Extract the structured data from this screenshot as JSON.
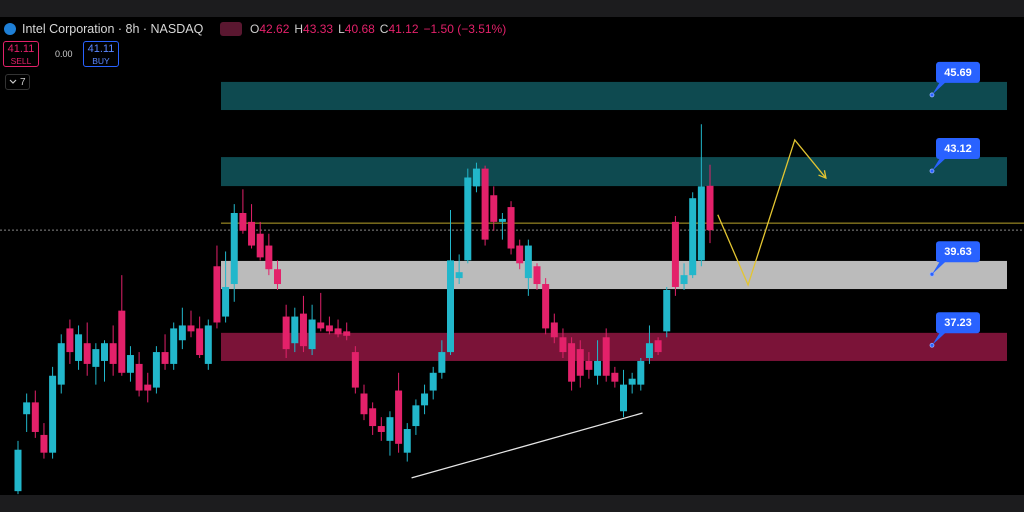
{
  "header": {
    "symbol": "Intel Corporation · 8h · NASDAQ",
    "ohlc_letters": [
      "O",
      "H",
      "L",
      "C"
    ],
    "change": "−1.50 (−3.51%)",
    "sell": {
      "price": "41.11",
      "label": "SELL"
    },
    "spread": "0.00",
    "buy": {
      "price": "41.11",
      "label": "BUY"
    },
    "indicators": "7"
  },
  "chart_data": {
    "type": "candlestick",
    "ylim": [
      32.17,
      48.29
    ],
    "up_color": "#22b7cb",
    "down_color": "#e3216a",
    "open": [
      32.3,
      34.9,
      35.3,
      34.2,
      33.6,
      35.9,
      37.8,
      36.7,
      37.3,
      36.5,
      36.7,
      37.3,
      38.4,
      36.3,
      36.6,
      35.9,
      35.8,
      37.0,
      36.6,
      37.4,
      37.9,
      37.8,
      36.6,
      39.9,
      38.2,
      39.3,
      41.7,
      41.4,
      41.0,
      40.6,
      39.8,
      38.2,
      37.3,
      38.3,
      37.1,
      38.0,
      37.9,
      37.8,
      37.7,
      37.0,
      35.6,
      35.1,
      34.5,
      34.0,
      35.7,
      33.6,
      34.5,
      35.2,
      35.7,
      36.3,
      37.0,
      39.5,
      40.1,
      42.6,
      43.2,
      42.3,
      41.4,
      41.9,
      40.6,
      39.5,
      39.9,
      39.3,
      38.0,
      37.5,
      37.3,
      37.1,
      36.7,
      36.2,
      37.5,
      36.3,
      35.0,
      35.9,
      35.9,
      36.8,
      37.4,
      37.7,
      41.4,
      39.3,
      39.6,
      40.1,
      42.62
    ],
    "high": [
      34.0,
      35.6,
      35.7,
      34.6,
      36.5,
      37.6,
      38.1,
      37.9,
      38.0,
      37.3,
      37.4,
      37.9,
      39.6,
      37.2,
      37.0,
      36.3,
      37.2,
      37.6,
      38.0,
      38.5,
      38.4,
      38.2,
      38.1,
      40.6,
      40.4,
      42.0,
      42.5,
      42.0,
      41.4,
      41.0,
      40.1,
      38.6,
      38.5,
      38.9,
      38.6,
      39.0,
      38.2,
      38.1,
      38.0,
      37.2,
      35.9,
      35.3,
      34.8,
      35.0,
      36.3,
      34.6,
      35.4,
      35.9,
      36.5,
      37.4,
      41.8,
      40.3,
      43.2,
      43.4,
      43.3,
      42.6,
      41.7,
      42.1,
      40.8,
      40.8,
      40.0,
      39.5,
      38.3,
      37.8,
      37.5,
      37.4,
      37.0,
      37.4,
      37.8,
      36.5,
      36.4,
      36.3,
      36.8,
      37.9,
      37.5,
      39.2,
      41.6,
      40.0,
      42.4,
      44.7,
      43.33
    ],
    "low": [
      32.2,
      34.3,
      34.1,
      33.4,
      33.4,
      35.6,
      36.6,
      36.4,
      36.2,
      35.9,
      36.0,
      36.2,
      36.2,
      36.0,
      35.5,
      35.3,
      35.6,
      36.4,
      36.4,
      37.1,
      37.5,
      36.8,
      36.4,
      37.8,
      38.0,
      38.7,
      41.0,
      40.5,
      40.1,
      39.6,
      39.1,
      36.8,
      37.0,
      37.0,
      36.9,
      37.7,
      37.6,
      37.5,
      37.4,
      35.6,
      34.7,
      34.2,
      34.0,
      33.5,
      33.6,
      33.3,
      34.2,
      34.9,
      35.4,
      36.1,
      36.9,
      39.3,
      40.0,
      42.4,
      40.6,
      41.1,
      40.8,
      40.3,
      39.8,
      38.9,
      39.1,
      37.6,
      37.3,
      36.8,
      35.7,
      35.8,
      36.1,
      35.9,
      36.0,
      35.8,
      34.8,
      35.6,
      35.7,
      36.6,
      36.9,
      37.5,
      38.9,
      39.1,
      39.5,
      39.9,
      40.68
    ],
    "close": [
      33.7,
      35.3,
      34.3,
      33.6,
      36.2,
      37.3,
      37.0,
      37.6,
      36.6,
      37.1,
      37.3,
      36.6,
      36.3,
      36.9,
      35.7,
      35.7,
      37.0,
      36.6,
      37.8,
      37.9,
      37.7,
      36.9,
      37.9,
      38.0,
      39.2,
      41.7,
      41.1,
      40.6,
      40.2,
      39.8,
      39.3,
      37.1,
      38.2,
      37.2,
      38.1,
      37.8,
      37.7,
      37.6,
      37.55,
      35.8,
      34.9,
      34.5,
      34.3,
      34.8,
      33.9,
      34.4,
      35.2,
      35.6,
      36.3,
      37.0,
      40.1,
      39.7,
      42.9,
      43.2,
      40.8,
      41.4,
      41.5,
      40.5,
      40.0,
      40.6,
      39.3,
      37.8,
      37.5,
      37.0,
      36.0,
      36.2,
      36.4,
      36.7,
      36.2,
      36.0,
      35.9,
      36.1,
      36.7,
      37.3,
      37.0,
      39.1,
      39.2,
      39.6,
      42.2,
      42.6,
      41.12
    ],
    "zones": [
      {
        "low": 45.18,
        "high": 46.13,
        "level": 45.69,
        "color": "#0e4a50"
      },
      {
        "low": 42.61,
        "high": 43.59,
        "level": 43.12,
        "color": "#0e4a50"
      },
      {
        "low": 39.13,
        "high": 40.08,
        "level": 39.63,
        "color": "#cfcfcf"
      },
      {
        "low": 36.7,
        "high": 37.65,
        "level": 37.23,
        "color": "#7b1338"
      }
    ],
    "horizontal_line": {
      "value": 41.36,
      "color": "#b8a22a"
    },
    "trendline": {
      "x": [
        45.5,
        72.2
      ],
      "y": [
        32.75,
        34.94
      ],
      "color": "#e6e6e6"
    },
    "projection": {
      "x": [
        80.9,
        84.4,
        89.8,
        93.4
      ],
      "y": [
        41.64,
        39.27,
        44.17,
        42.88
      ],
      "color": "#e3c531"
    }
  }
}
